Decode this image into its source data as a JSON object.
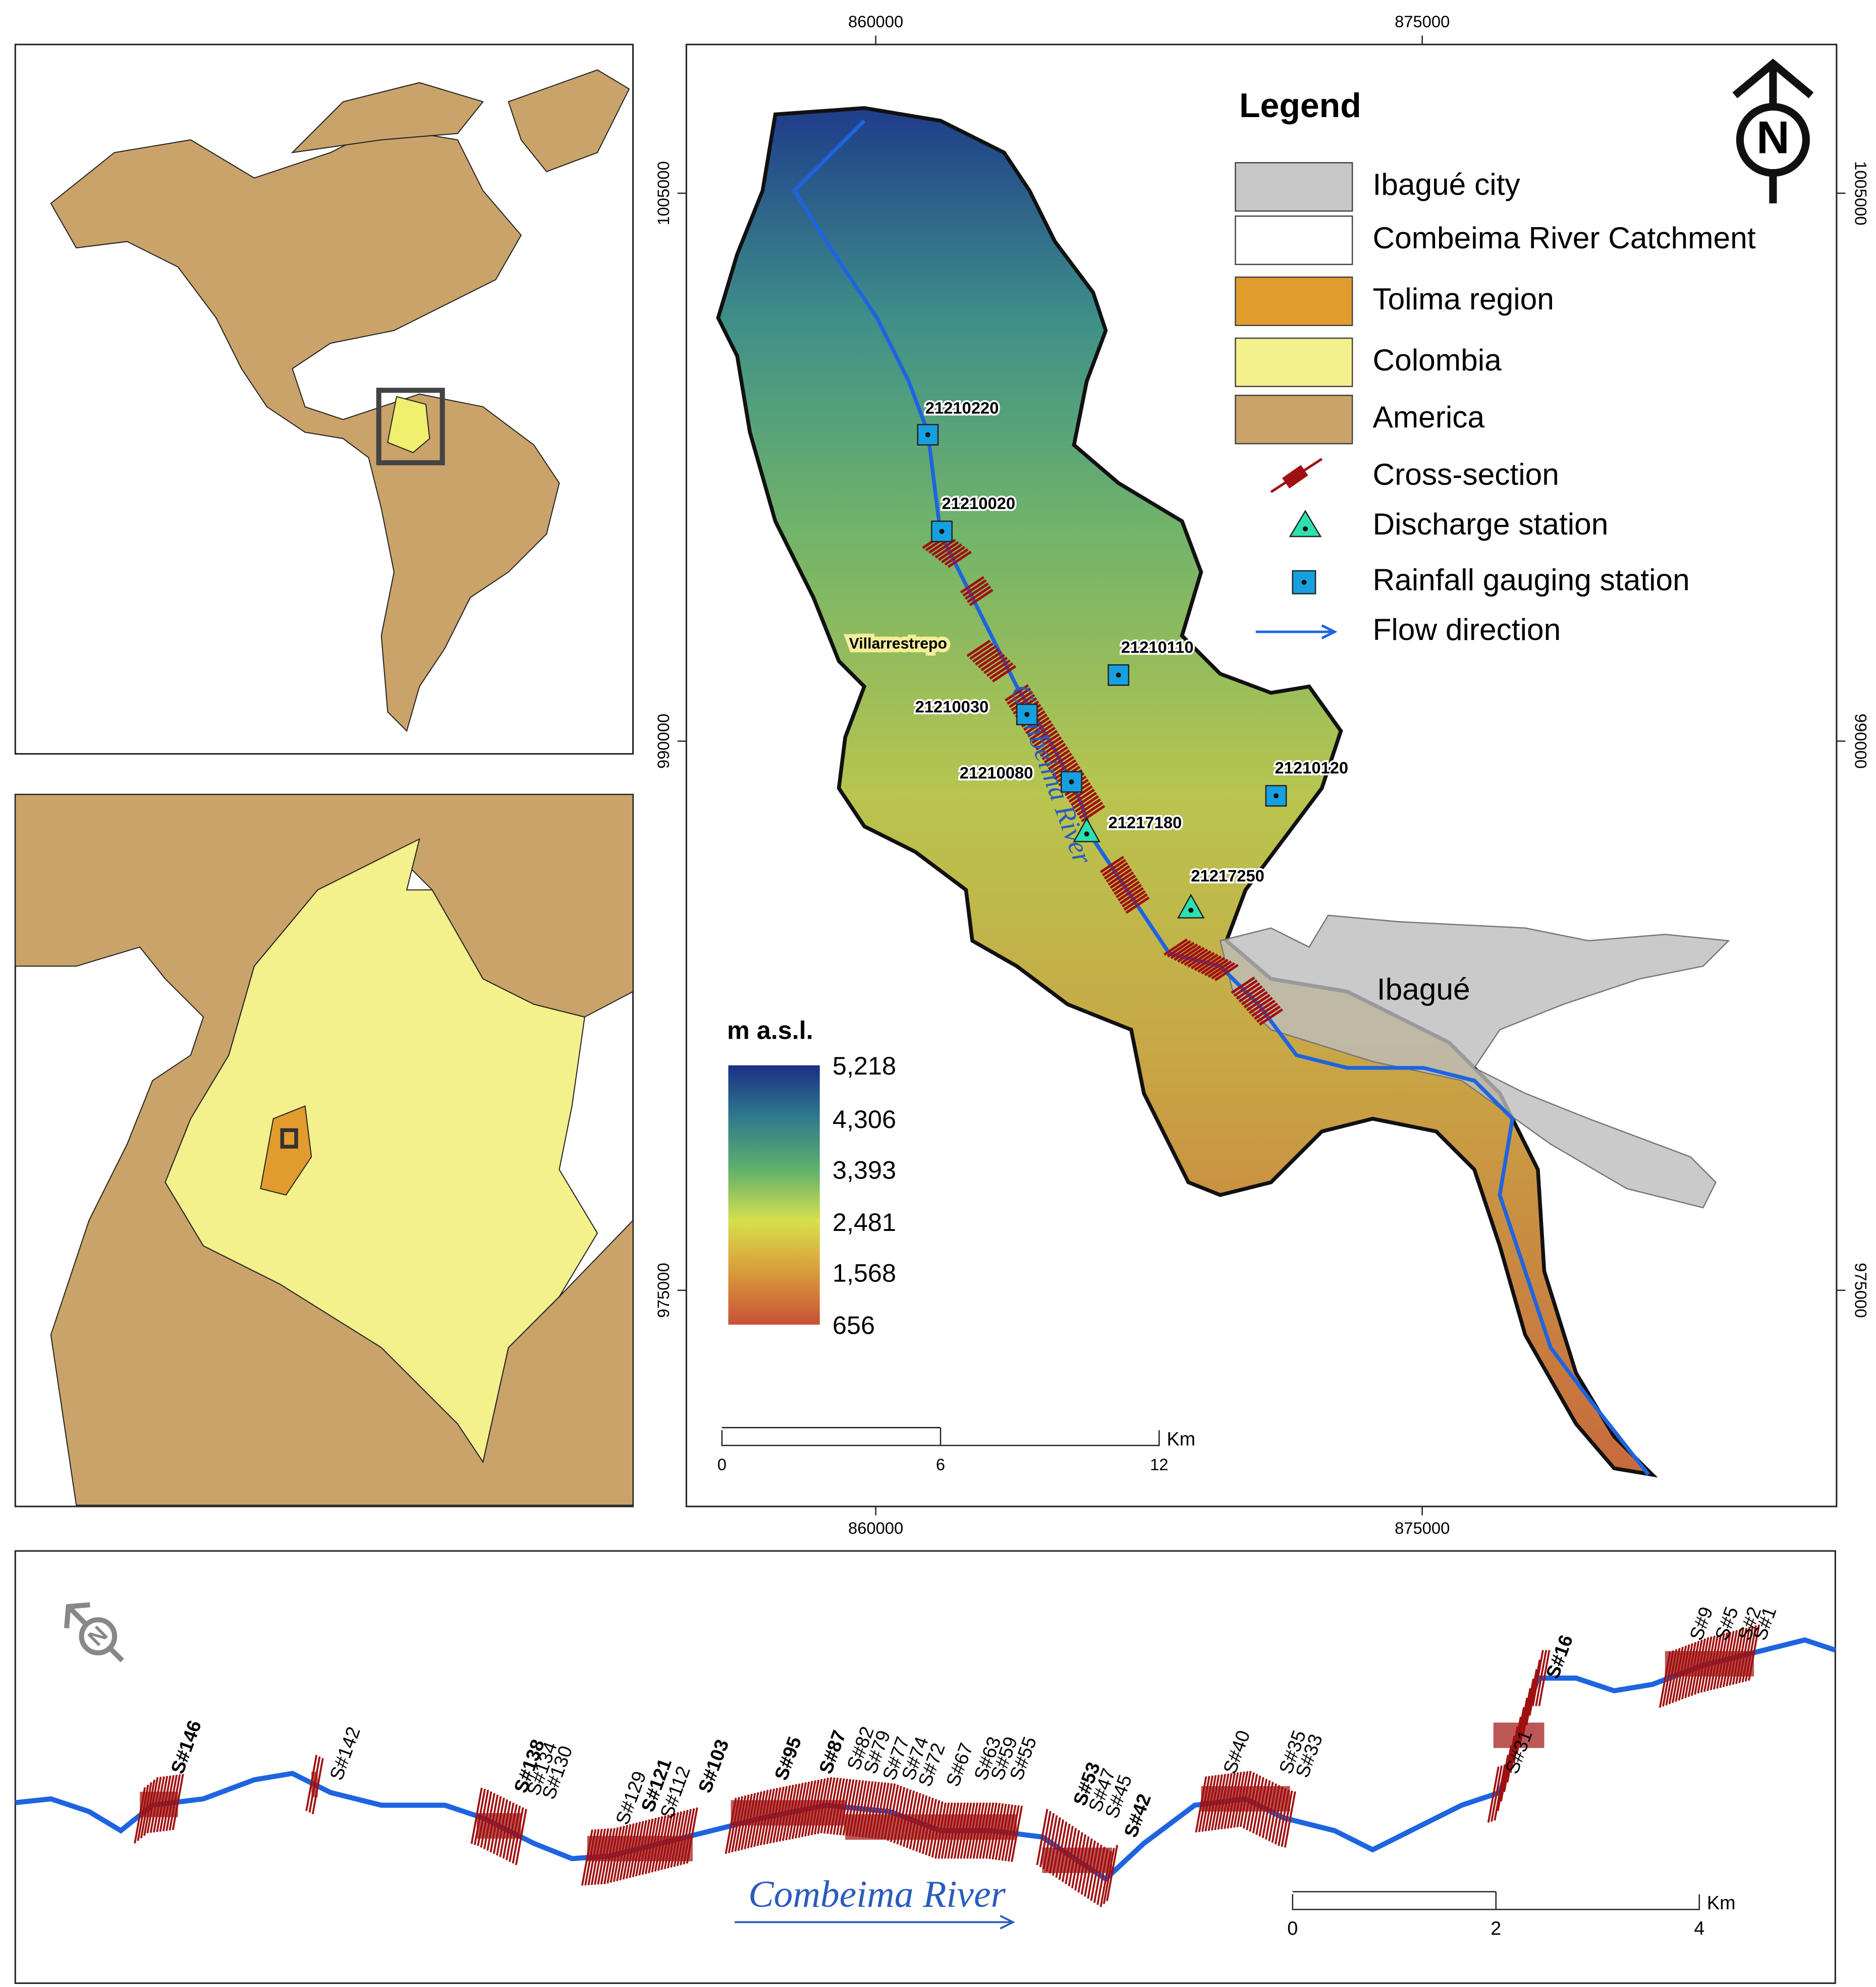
{
  "coordinates": {
    "x_ticks": [
      "860000",
      "875000"
    ],
    "y_ticks": [
      "1005000",
      "990000",
      "975000"
    ]
  },
  "north": "N",
  "legend": {
    "title": "Legend",
    "items": [
      "Ibagué city",
      "Combeima River Catchment",
      "Tolima region",
      "Colombia",
      "America",
      "Cross-section",
      "Discharge station",
      "Rainfall gauging station",
      "Flow direction"
    ]
  },
  "stations": [
    "21210220",
    "21210020",
    "21210110",
    "21210030",
    "21210080",
    "21210120",
    "21217180",
    "21217250"
  ],
  "places": {
    "village": "Villarrestrepo",
    "city": "Ibagué"
  },
  "river_name": "Combeima River",
  "elevation_bar": {
    "title": "m a.s.l.",
    "ticks": [
      "5,218",
      "4,306",
      "3,393",
      "2,481",
      "1,568",
      "656"
    ]
  },
  "scale_bar_main": {
    "labels": [
      "0",
      "6",
      "12"
    ],
    "unit": "Km"
  },
  "profile": {
    "cross_sections": [
      "S#146",
      "S#142",
      "S#138",
      "S#134",
      "S#130",
      "S#129",
      "S#121",
      "S#112",
      "S#103",
      "S#95",
      "S#87",
      "S#82",
      "S#79",
      "S#77",
      "S#74",
      "S#72",
      "S#67",
      "S#63",
      "S#59",
      "S#55",
      "S#53",
      "S#47",
      "S#45",
      "S#42",
      "S#40",
      "S#35",
      "S#33",
      "S#31",
      "S#16",
      "S#9",
      "S#5",
      "S#2",
      "S#1"
    ],
    "scale_bar": {
      "labels": [
        "0",
        "2",
        "4"
      ],
      "unit": "Km"
    }
  }
}
